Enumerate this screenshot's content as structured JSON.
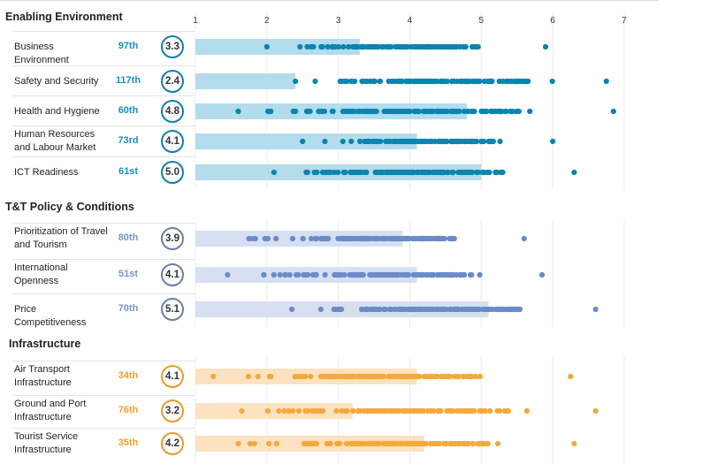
{
  "colors": {
    "enabling": {
      "dot": "#0a84b0",
      "bar": "#b3dced",
      "circle": "#1180aa",
      "rank": "#1a8fc0"
    },
    "policy": {
      "dot": "#6b8bc8",
      "bar": "#d6e0f1",
      "circle": "#6b7fa8",
      "rank": "#7b93c8"
    },
    "infra": {
      "dot": "#f4a93c",
      "bar": "#fde2c2",
      "circle": "#e99a2e",
      "rank": "#f0a030"
    }
  },
  "chart_data": {
    "type": "scatter",
    "xlim": [
      1,
      7
    ],
    "ticks": [
      "1",
      "2",
      "3",
      "4",
      "5",
      "6",
      "7"
    ],
    "sections": [
      {
        "title": "Enabling Environment",
        "theme": "enabling",
        "rows": [
          {
            "label": "Business Environment",
            "rank": "97th",
            "score": "3.3",
            "value": 3.3,
            "dist_min": 2.0,
            "dist_max": 5.9
          },
          {
            "label": "Safety and Security",
            "rank": "117th",
            "score": "2.4",
            "value": 2.4,
            "dist_min": 2.4,
            "dist_max": 6.75
          },
          {
            "label": "Health and Hygiene",
            "rank": "60th",
            "score": "4.8",
            "value": 4.8,
            "dist_min": 1.6,
            "dist_max": 6.85
          },
          {
            "label": "Human Resources and Labour Market",
            "rank": "73rd",
            "score": "4.1",
            "value": 4.1,
            "dist_min": 2.5,
            "dist_max": 6.0
          },
          {
            "label": "ICT Readiness",
            "rank": "61st",
            "score": "5.0",
            "value": 5.0,
            "dist_min": 2.1,
            "dist_max": 6.3
          }
        ]
      },
      {
        "title": "T&T Policy & Conditions",
        "theme": "policy",
        "rows": [
          {
            "label": "Prioritization of Travel and Tourism",
            "rank": "80th",
            "score": "3.9",
            "value": 3.9,
            "dist_min": 1.75,
            "dist_max": 5.6
          },
          {
            "label": "International Openness",
            "rank": "51st",
            "score": "4.1",
            "value": 4.1,
            "dist_min": 1.45,
            "dist_max": 5.85
          },
          {
            "label": "Price Competitiveness",
            "rank": "70th",
            "score": "5.1",
            "value": 5.1,
            "dist_min": 2.35,
            "dist_max": 6.6
          }
        ]
      },
      {
        "title": "Infrastructure",
        "theme": "infra",
        "rows": [
          {
            "label": "Air Transport Infrastructure",
            "rank": "34th",
            "score": "4.1",
            "value": 4.1,
            "dist_min": 1.25,
            "dist_max": 6.25
          },
          {
            "label": "Ground and Port Infrastructure",
            "rank": "76th",
            "score": "3.2",
            "value": 3.2,
            "dist_min": 1.65,
            "dist_max": 6.6
          },
          {
            "label": "Tourist Service Infrastructure",
            "rank": "35th",
            "score": "4.2",
            "value": 4.2,
            "dist_min": 1.6,
            "dist_max": 6.3
          }
        ]
      }
    ]
  }
}
